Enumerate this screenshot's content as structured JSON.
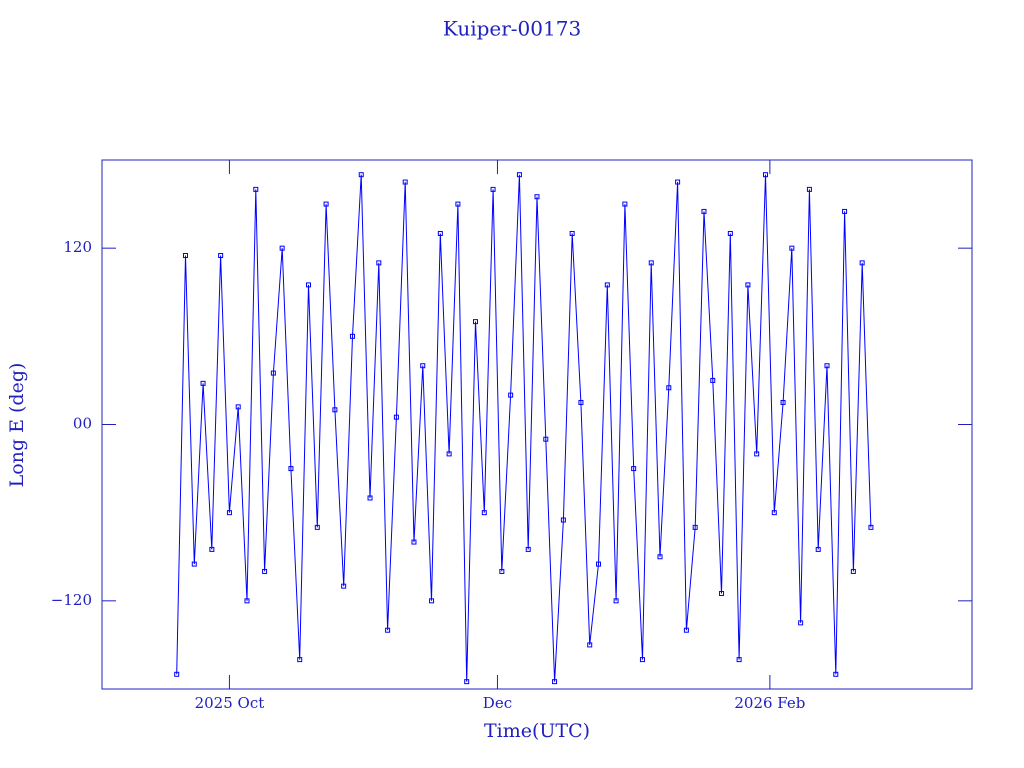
{
  "chart_data": {
    "type": "line",
    "title": "Kuiper-00173",
    "x_label": "Time(UTC)",
    "y_label": "Long E (deg)",
    "xlim": [
      "2025-09-02",
      "2026-03-19"
    ],
    "xticks": [
      {
        "value": "2025-10-01",
        "label": "2025 Oct"
      },
      {
        "value": "2025-12-01",
        "label": "Dec"
      },
      {
        "value": "2026-02-01",
        "label": "2026 Feb"
      }
    ],
    "ylim": [
      -180,
      180
    ],
    "yticks": [
      {
        "value": -120,
        "label": "−120"
      },
      {
        "value": 0,
        "label": "00"
      },
      120
    ],
    "series": [
      {
        "name": "Kuiper-00173",
        "color": "#0000ff",
        "x": [
          "2025-09-19",
          "2025-09-21",
          "2025-09-23",
          "2025-09-25",
          "2025-09-27",
          "2025-09-29",
          "2025-10-01",
          "2025-10-03",
          "2025-10-05",
          "2025-10-07",
          "2025-10-09",
          "2025-10-11",
          "2025-10-13",
          "2025-10-15",
          "2025-10-17",
          "2025-10-19",
          "2025-10-21",
          "2025-10-23",
          "2025-10-25",
          "2025-10-27",
          "2025-10-29",
          "2025-10-31",
          "2025-11-02",
          "2025-11-04",
          "2025-11-06",
          "2025-11-08",
          "2025-11-10",
          "2025-11-12",
          "2025-11-14",
          "2025-11-16",
          "2025-11-18",
          "2025-11-20",
          "2025-11-22",
          "2025-11-24",
          "2025-11-26",
          "2025-11-28",
          "2025-11-30",
          "2025-12-02",
          "2025-12-04",
          "2025-12-06",
          "2025-12-08",
          "2025-12-10",
          "2025-12-12",
          "2025-12-14",
          "2025-12-16",
          "2025-12-18",
          "2025-12-20",
          "2025-12-22",
          "2025-12-24",
          "2025-12-26",
          "2025-12-28",
          "2025-12-30",
          "2026-01-01",
          "2026-01-03",
          "2026-01-05",
          "2026-01-07",
          "2026-01-09",
          "2026-01-11",
          "2026-01-13",
          "2026-01-15",
          "2026-01-17",
          "2026-01-19",
          "2026-01-21",
          "2026-01-23",
          "2026-01-25",
          "2026-01-27",
          "2026-01-29",
          "2026-01-31",
          "2026-02-02",
          "2026-02-04",
          "2026-02-06",
          "2026-02-08",
          "2026-02-10",
          "2026-02-12",
          "2026-02-14",
          "2026-02-16",
          "2026-02-18",
          "2026-02-20",
          "2026-02-22",
          "2026-02-24"
        ],
        "values": [
          -170,
          115,
          -95,
          28,
          -85,
          115,
          -60,
          12,
          -120,
          160,
          -100,
          35,
          120,
          -30,
          -160,
          95,
          -70,
          150,
          10,
          -110,
          60,
          170,
          -50,
          110,
          -140,
          5,
          165,
          -80,
          40,
          -120,
          130,
          -20,
          150,
          -175,
          70,
          -60,
          160,
          -100,
          20,
          170,
          -85,
          155,
          -10,
          -175,
          -65,
          130,
          15,
          -150,
          -95,
          95,
          -120,
          150,
          -30,
          -160,
          110,
          -90,
          25,
          165,
          -140,
          -70,
          145,
          30,
          -115,
          130,
          -160,
          95,
          -20,
          170,
          -60,
          15,
          120,
          -135,
          160,
          -85,
          40,
          -170,
          145,
          -100,
          110,
          -70
        ]
      }
    ]
  }
}
